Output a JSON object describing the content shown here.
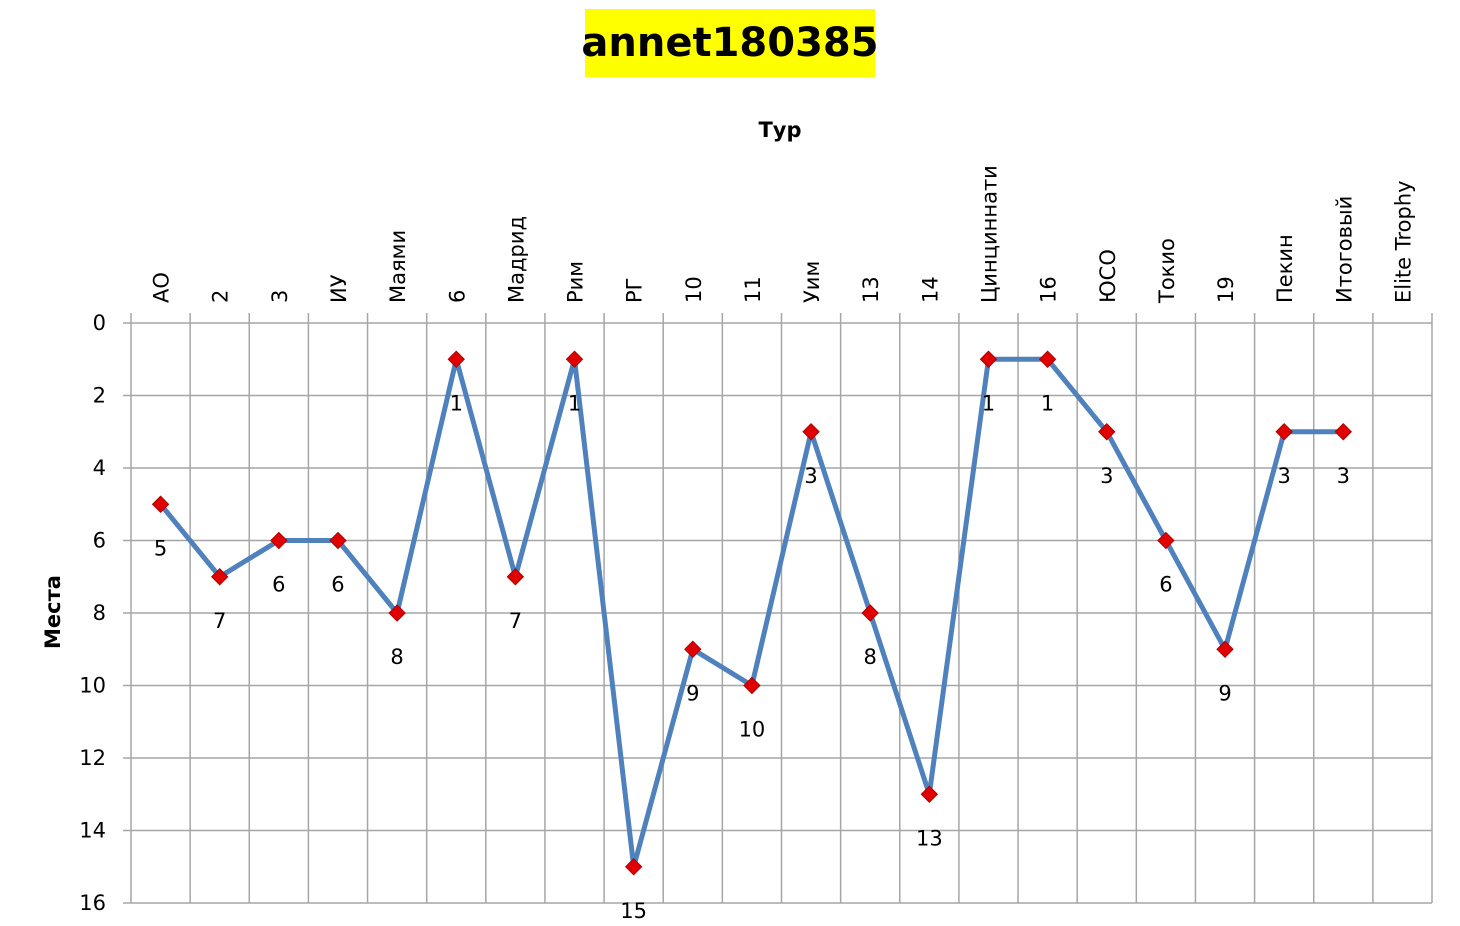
{
  "chart_data": {
    "type": "line",
    "title": "annet180385",
    "xlabel": "Тур",
    "ylabel": "Места",
    "categories": [
      "АО",
      "2",
      "3",
      "ИУ",
      "Маями",
      "6",
      "Мадрид",
      "Рим",
      "РГ",
      "10",
      "11",
      "Уим",
      "13",
      "14",
      "Цинциннати",
      "16",
      "ЮСО",
      "Токио",
      "19",
      "Пекин",
      "Итоговый",
      "Elite Trophy"
    ],
    "series": [
      {
        "values": [
          5,
          7,
          6,
          6,
          8,
          1,
          7,
          1,
          15,
          9,
          10,
          3,
          8,
          13,
          1,
          1,
          3,
          6,
          9,
          3,
          3,
          null
        ],
        "labels": [
          "5",
          "7",
          "6",
          "6",
          "8",
          "1",
          "7",
          "1",
          "15",
          "9",
          "10",
          "3",
          "8",
          "13",
          "1",
          "1",
          "3",
          "6",
          "9",
          "3",
          "3",
          ""
        ]
      }
    ],
    "yticks": [
      "0",
      "2",
      "4",
      "6",
      "8",
      "10",
      "12",
      "14",
      "16"
    ],
    "ylim": [
      0,
      16
    ],
    "y_reversed": true,
    "grid": true,
    "colors": {
      "line": "#4f81bd",
      "marker": "#e00000",
      "grid": "#a6a6a6",
      "title_bg": "#ffff00"
    }
  }
}
